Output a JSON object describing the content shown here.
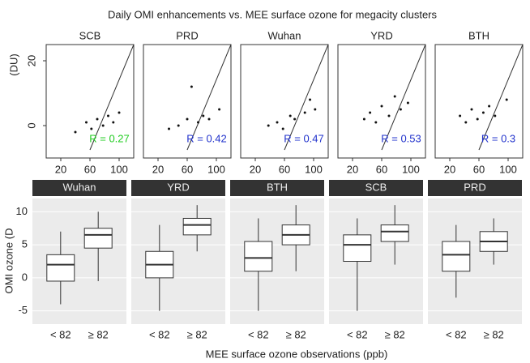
{
  "chart_data": [
    {
      "type": "scatter",
      "title": "Daily OMI enhancements vs. MEE surface ozone for megacity clusters",
      "y_label": "(DU)",
      "xlim": [
        0,
        120
      ],
      "xticks": [
        20,
        60,
        100
      ],
      "ylim": [
        -10,
        25
      ],
      "yticks": [
        0,
        20
      ],
      "point_color": "#111111",
      "panels": [
        {
          "name": "SCB",
          "r_label": "R = 0.27",
          "r_color": "#22cc22",
          "x": [
            40,
            55,
            62,
            70,
            78,
            85,
            92,
            100
          ],
          "y": [
            -2,
            1,
            -1,
            2,
            0,
            3,
            1,
            4
          ]
        },
        {
          "name": "PRD",
          "r_label": "R = 0.42",
          "r_color": "#2233cc",
          "x": [
            35,
            48,
            60,
            66,
            75,
            82,
            90,
            104
          ],
          "y": [
            -1,
            0,
            2,
            12,
            1,
            3,
            2,
            5
          ]
        },
        {
          "name": "Wuhan",
          "r_label": "R = 0.47",
          "r_color": "#2233cc",
          "x": [
            38,
            50,
            58,
            68,
            74,
            88,
            95,
            102
          ],
          "y": [
            0,
            1,
            -1,
            3,
            2,
            4,
            8,
            5
          ]
        },
        {
          "name": "YRD",
          "r_label": "R = 0.53",
          "r_color": "#2233cc",
          "x": [
            36,
            44,
            52,
            60,
            70,
            78,
            86,
            96
          ],
          "y": [
            2,
            4,
            1,
            6,
            3,
            9,
            5,
            7
          ]
        },
        {
          "name": "BTH",
          "r_label": "R = 0.3",
          "r_color": "#2233cc",
          "x": [
            34,
            42,
            50,
            58,
            66,
            74,
            82,
            98
          ],
          "y": [
            3,
            1,
            5,
            2,
            4,
            6,
            3,
            8
          ]
        }
      ]
    },
    {
      "type": "box",
      "x_label": "MEE surface ozone observations (ppb)",
      "y_label": "OMI ozone (D",
      "ylim": [
        -7,
        12
      ],
      "yticks": [
        -5,
        0,
        5,
        10
      ],
      "categories": [
        "< 82",
        "≥ 82"
      ],
      "panels": [
        {
          "name": "Wuhan",
          "boxes": [
            {
              "min": -4,
              "q1": -0.5,
              "median": 2,
              "q3": 3.5,
              "max": 7
            },
            {
              "min": -0.5,
              "q1": 4.5,
              "median": 6.5,
              "q3": 7.5,
              "max": 10
            }
          ]
        },
        {
          "name": "YRD",
          "boxes": [
            {
              "min": -5,
              "q1": 0,
              "median": 2,
              "q3": 4,
              "max": 8
            },
            {
              "min": 4,
              "q1": 6.5,
              "median": 8,
              "q3": 9,
              "max": 11
            }
          ]
        },
        {
          "name": "BTH",
          "boxes": [
            {
              "min": -5,
              "q1": 1,
              "median": 3,
              "q3": 5.5,
              "max": 9
            },
            {
              "min": 1,
              "q1": 5,
              "median": 6.5,
              "q3": 8,
              "max": 11
            }
          ]
        },
        {
          "name": "SCB",
          "boxes": [
            {
              "min": -5,
              "q1": 2.5,
              "median": 5,
              "q3": 6.5,
              "max": 9
            },
            {
              "min": 2,
              "q1": 5.5,
              "median": 7,
              "q3": 8,
              "max": 11
            }
          ]
        },
        {
          "name": "PRD",
          "boxes": [
            {
              "min": -3,
              "q1": 1,
              "median": 3.5,
              "q3": 5.5,
              "max": 8
            },
            {
              "min": 2,
              "q1": 4,
              "median": 5.5,
              "q3": 7,
              "max": 9
            }
          ]
        }
      ]
    }
  ]
}
